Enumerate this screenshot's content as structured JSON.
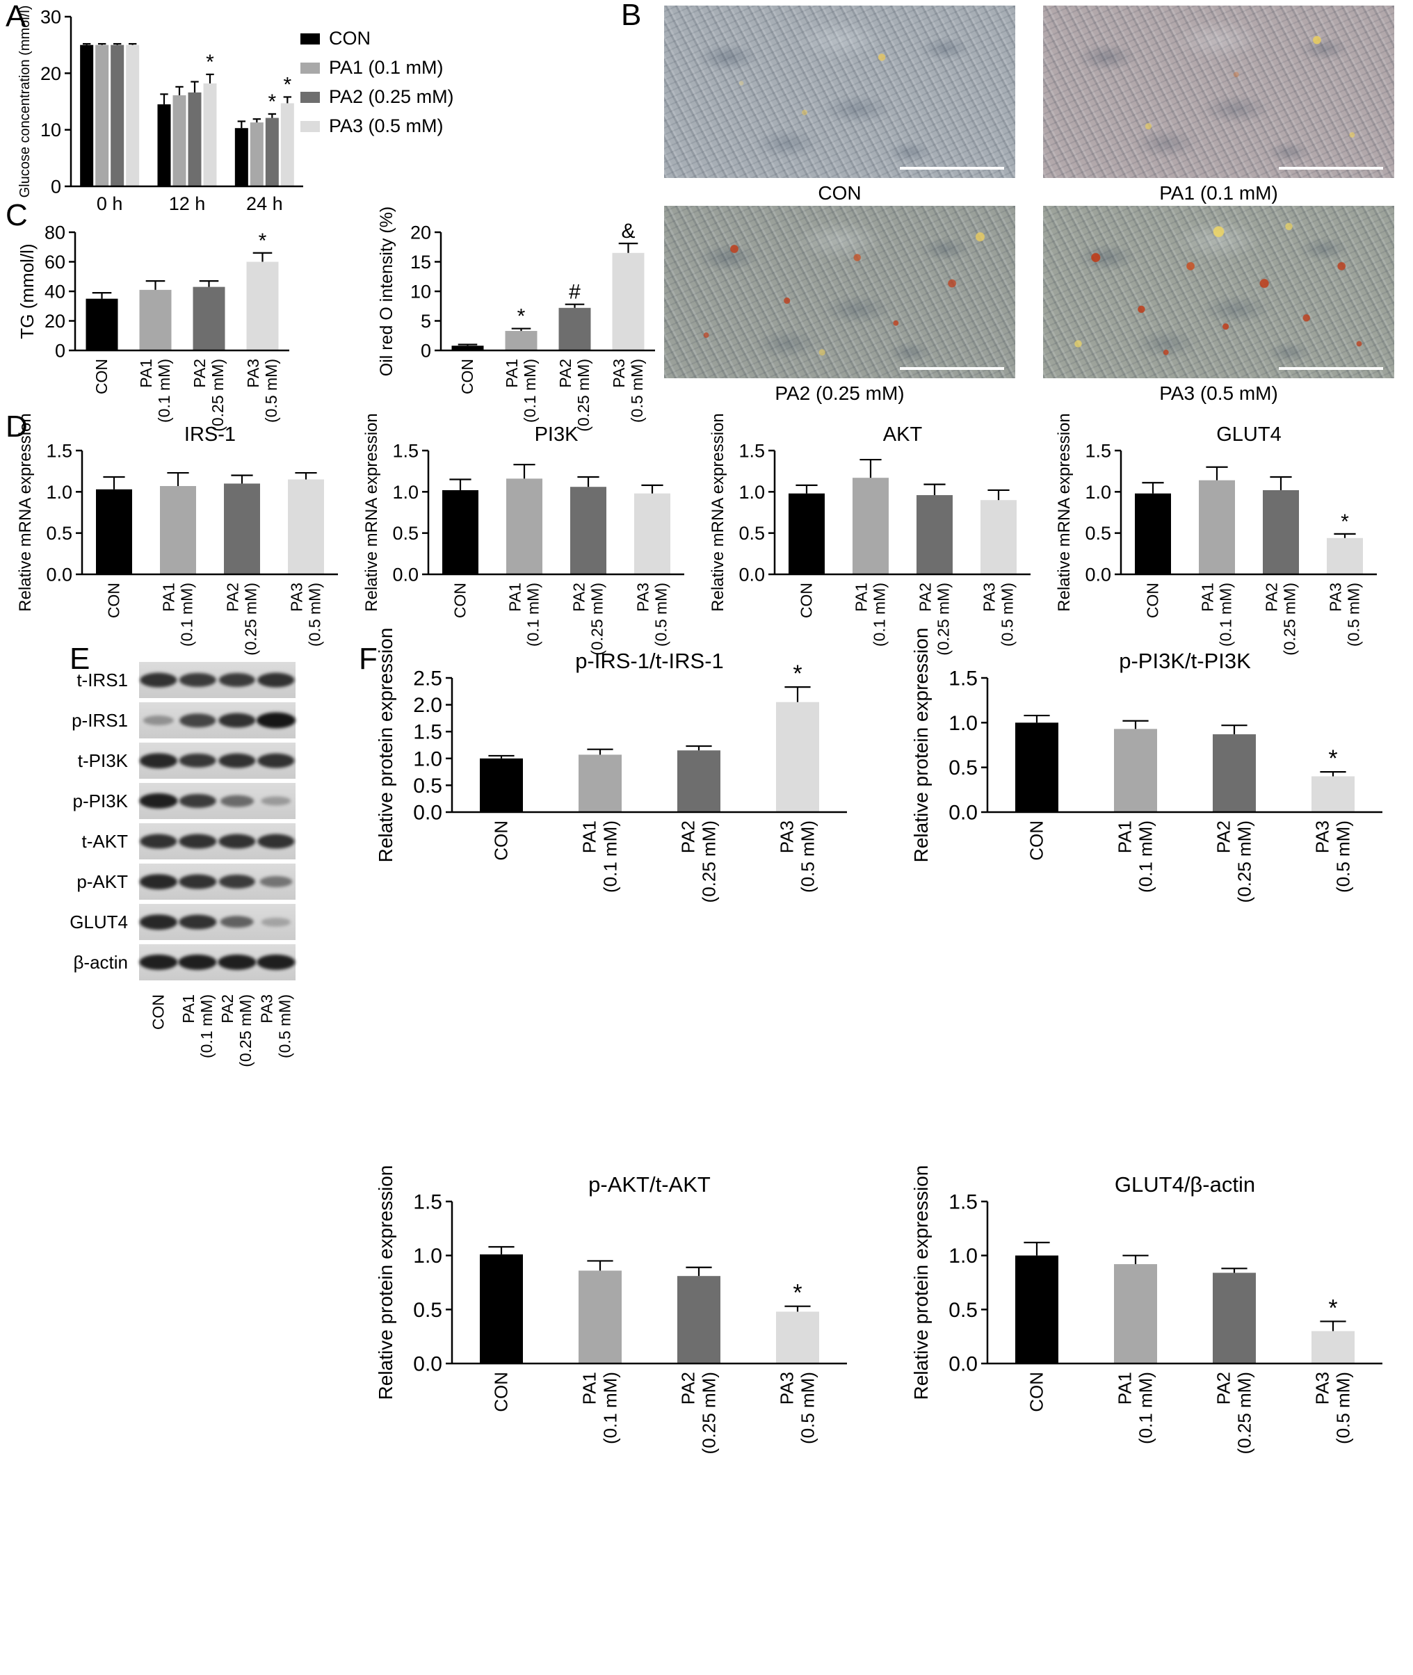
{
  "panels": {
    "A": "A",
    "B": "B",
    "C": "C",
    "D": "D",
    "E": "E",
    "F": "F"
  },
  "colors": {
    "con": "#000000",
    "pa1": "#a8a8a8",
    "pa2": "#6e6e6e",
    "pa3": "#dcdcdc"
  },
  "legend": {
    "items": [
      {
        "label": "CON",
        "color": "#000000"
      },
      {
        "label": "PA1 (0.1 mM)",
        "color": "#a8a8a8"
      },
      {
        "label": "PA2 (0.25 mM)",
        "color": "#6e6e6e"
      },
      {
        "label": "PA3 (0.5 mM)",
        "color": "#dcdcdc"
      }
    ]
  },
  "micrographs": [
    {
      "label": "CON"
    },
    {
      "label": "PA1 (0.1 mM)"
    },
    {
      "label": "PA2 (0.25 mM)"
    },
    {
      "label": "PA3 (0.5 mM)"
    }
  ],
  "western_blot": {
    "lane_labels": [
      [
        "CON"
      ],
      [
        "PA1",
        "(0.1 mM)"
      ],
      [
        "PA2",
        "(0.25 mM)"
      ],
      [
        "PA3",
        "(0.5 mM)"
      ]
    ],
    "rows": [
      {
        "label": "t-IRS1",
        "bands": [
          0.85,
          0.8,
          0.8,
          0.85
        ]
      },
      {
        "label": "p-IRS1",
        "bands": [
          0.35,
          0.75,
          0.85,
          1.0
        ]
      },
      {
        "label": "t-PI3K",
        "bands": [
          0.9,
          0.82,
          0.85,
          0.85
        ]
      },
      {
        "label": "p-PI3K",
        "bands": [
          0.95,
          0.8,
          0.55,
          0.3
        ]
      },
      {
        "label": "t-AKT",
        "bands": [
          0.85,
          0.85,
          0.85,
          0.85
        ]
      },
      {
        "label": "p-AKT",
        "bands": [
          0.9,
          0.85,
          0.8,
          0.5
        ]
      },
      {
        "label": "GLUT4",
        "bands": [
          0.9,
          0.85,
          0.6,
          0.25
        ]
      },
      {
        "label": "β-actin",
        "bands": [
          0.95,
          0.95,
          0.95,
          0.95
        ]
      }
    ]
  },
  "chart_data": [
    {
      "id": "glucose",
      "type": "bar",
      "title": "",
      "ylabel": "Glucose concentration (mmol/l)",
      "ylim": [
        0,
        30
      ],
      "yticks": [
        0,
        10,
        20,
        30
      ],
      "ytick_labels": [
        "0",
        "10",
        "20",
        "30"
      ],
      "categories": [
        "0 h",
        "12 h",
        "24 h"
      ],
      "legend_position": "right",
      "grid": false,
      "series": [
        {
          "name": "CON",
          "color": "#000000",
          "values": [
            25,
            14.5,
            10.3
          ],
          "errors": [
            0.2,
            1.8,
            1.2
          ]
        },
        {
          "name": "PA1 (0.1 mM)",
          "color": "#a8a8a8",
          "values": [
            25,
            16.1,
            11.3
          ],
          "errors": [
            0.2,
            1.5,
            0.6
          ]
        },
        {
          "name": "PA2 (0.25 mM)",
          "color": "#6e6e6e",
          "values": [
            25,
            16.6,
            12.1
          ],
          "errors": [
            0.2,
            1.9,
            0.7
          ]
        },
        {
          "name": "PA3 (0.5 mM)",
          "color": "#dcdcdc",
          "values": [
            25,
            18.2,
            14.7
          ],
          "errors": [
            0.2,
            1.6,
            1.1
          ]
        }
      ],
      "annotations": [
        {
          "series": 3,
          "category": 1,
          "symbol": "*"
        },
        {
          "series": 2,
          "category": 2,
          "symbol": "*"
        },
        {
          "series": 3,
          "category": 2,
          "symbol": "*"
        }
      ]
    },
    {
      "id": "tg",
      "type": "bar",
      "ylabel": "TG (mmol/l)",
      "ylim": [
        0,
        80
      ],
      "yticks": [
        0,
        20,
        40,
        60,
        80
      ],
      "ytick_labels": [
        "0",
        "20",
        "40",
        "60",
        "80"
      ],
      "categories": [
        [
          "CON"
        ],
        [
          "PA1",
          "(0.1 mM)"
        ],
        [
          "PA2",
          "(0.25 mM)"
        ],
        [
          "PA3",
          "(0.5 mM)"
        ]
      ],
      "values": [
        35,
        41,
        43,
        60
      ],
      "errors": [
        4,
        6,
        4,
        6
      ],
      "colors": [
        "#000000",
        "#a8a8a8",
        "#6e6e6e",
        "#dcdcdc"
      ],
      "annotations": [
        {
          "bar": 3,
          "symbol": "*"
        }
      ]
    },
    {
      "id": "oil",
      "type": "bar",
      "ylabel": "Oil red O intensity (%)",
      "ylim": [
        0,
        20
      ],
      "yticks": [
        0,
        5,
        10,
        15,
        20
      ],
      "ytick_labels": [
        "0",
        "5",
        "10",
        "15",
        "20"
      ],
      "categories": [
        [
          "CON"
        ],
        [
          "PA1",
          "(0.1 mM)"
        ],
        [
          "PA2",
          "(0.25 mM)"
        ],
        [
          "PA3",
          "(0.5 mM)"
        ]
      ],
      "values": [
        0.8,
        3.3,
        7.2,
        16.5
      ],
      "errors": [
        0.2,
        0.4,
        0.6,
        1.6
      ],
      "colors": [
        "#000000",
        "#a8a8a8",
        "#6e6e6e",
        "#dcdcdc"
      ],
      "annotations": [
        {
          "bar": 1,
          "symbol": "*"
        },
        {
          "bar": 2,
          "symbol": "#"
        },
        {
          "bar": 3,
          "symbol": "&"
        }
      ]
    },
    {
      "id": "irs1",
      "type": "bar",
      "title": "IRS-1",
      "ylabel": "Relative mRNA expression",
      "ylim": [
        0,
        1.5
      ],
      "yticks": [
        0,
        0.5,
        1,
        1.5
      ],
      "ytick_labels": [
        "0.0",
        "0.5",
        "1.0",
        "1.5"
      ],
      "categories": [
        [
          "CON"
        ],
        [
          "PA1",
          "(0.1 mM)"
        ],
        [
          "PA2",
          "(0.25 mM)"
        ],
        [
          "PA3",
          "(0.5 mM)"
        ]
      ],
      "values": [
        1.03,
        1.07,
        1.1,
        1.15
      ],
      "errors": [
        0.15,
        0.16,
        0.1,
        0.08
      ],
      "colors": [
        "#000000",
        "#a8a8a8",
        "#6e6e6e",
        "#dcdcdc"
      ],
      "annotations": []
    },
    {
      "id": "pi3k",
      "type": "bar",
      "title": "PI3K",
      "ylabel": "Relative mRNA expression",
      "ylim": [
        0,
        1.5
      ],
      "yticks": [
        0,
        0.5,
        1,
        1.5
      ],
      "ytick_labels": [
        "0.0",
        "0.5",
        "1.0",
        "1.5"
      ],
      "categories": [
        [
          "CON"
        ],
        [
          "PA1",
          "(0.1 mM)"
        ],
        [
          "PA2",
          "(0.25 mM)"
        ],
        [
          "PA3",
          "(0.5 mM)"
        ]
      ],
      "values": [
        1.02,
        1.16,
        1.06,
        0.98
      ],
      "errors": [
        0.13,
        0.17,
        0.12,
        0.1
      ],
      "colors": [
        "#000000",
        "#a8a8a8",
        "#6e6e6e",
        "#dcdcdc"
      ],
      "annotations": []
    },
    {
      "id": "akt",
      "type": "bar",
      "title": "AKT",
      "ylabel": "Relative mRNA expression",
      "ylim": [
        0,
        1.5
      ],
      "yticks": [
        0,
        0.5,
        1,
        1.5
      ],
      "ytick_labels": [
        "0.0",
        "0.5",
        "1.0",
        "1.5"
      ],
      "categories": [
        [
          "CON"
        ],
        [
          "PA1",
          "(0.1 mM)"
        ],
        [
          "PA2",
          "(0.25 mM)"
        ],
        [
          "PA3",
          "(0.5 mM)"
        ]
      ],
      "values": [
        0.98,
        1.17,
        0.96,
        0.9
      ],
      "errors": [
        0.1,
        0.22,
        0.13,
        0.12
      ],
      "colors": [
        "#000000",
        "#a8a8a8",
        "#6e6e6e",
        "#dcdcdc"
      ],
      "annotations": []
    },
    {
      "id": "glut4",
      "type": "bar",
      "title": "GLUT4",
      "ylabel": "Relative mRNA expression",
      "ylim": [
        0,
        1.5
      ],
      "yticks": [
        0,
        0.5,
        1,
        1.5
      ],
      "ytick_labels": [
        "0.0",
        "0.5",
        "1.0",
        "1.5"
      ],
      "categories": [
        [
          "CON"
        ],
        [
          "PA1",
          "(0.1 mM)"
        ],
        [
          "PA2",
          "(0.25 mM)"
        ],
        [
          "PA3",
          "(0.5 mM)"
        ]
      ],
      "values": [
        0.98,
        1.14,
        1.02,
        0.44
      ],
      "errors": [
        0.13,
        0.16,
        0.16,
        0.05
      ],
      "colors": [
        "#000000",
        "#a8a8a8",
        "#6e6e6e",
        "#dcdcdc"
      ],
      "annotations": [
        {
          "bar": 3,
          "symbol": "*"
        }
      ]
    },
    {
      "id": "p_irs1",
      "type": "bar",
      "title": "p-IRS-1/t-IRS-1",
      "ylabel": "Relative protein expression",
      "ylim": [
        0,
        2.5
      ],
      "yticks": [
        0,
        0.5,
        1,
        1.5,
        2,
        2.5
      ],
      "ytick_labels": [
        "0.0",
        "0.5",
        "1.0",
        "1.5",
        "2.0",
        "2.5"
      ],
      "categories": [
        [
          "CON"
        ],
        [
          "PA1",
          "(0.1 mM)"
        ],
        [
          "PA2",
          "(0.25 mM)"
        ],
        [
          "PA3",
          "(0.5 mM)"
        ]
      ],
      "values": [
        1.0,
        1.07,
        1.15,
        2.05
      ],
      "errors": [
        0.05,
        0.1,
        0.08,
        0.28
      ],
      "colors": [
        "#000000",
        "#a8a8a8",
        "#6e6e6e",
        "#dcdcdc"
      ],
      "annotations": [
        {
          "bar": 3,
          "symbol": "*"
        }
      ]
    },
    {
      "id": "p_pi3k",
      "type": "bar",
      "title": "p-PI3K/t-PI3K",
      "ylabel": "Relative protein expression",
      "ylim": [
        0,
        1.5
      ],
      "yticks": [
        0,
        0.5,
        1,
        1.5
      ],
      "ytick_labels": [
        "0.0",
        "0.5",
        "1.0",
        "1.5"
      ],
      "categories": [
        [
          "CON"
        ],
        [
          "PA1",
          "(0.1 mM)"
        ],
        [
          "PA2",
          "(0.25 mM)"
        ],
        [
          "PA3",
          "(0.5 mM)"
        ]
      ],
      "values": [
        1.0,
        0.93,
        0.87,
        0.4
      ],
      "errors": [
        0.08,
        0.09,
        0.1,
        0.05
      ],
      "colors": [
        "#000000",
        "#a8a8a8",
        "#6e6e6e",
        "#dcdcdc"
      ],
      "annotations": [
        {
          "bar": 3,
          "symbol": "*"
        }
      ]
    },
    {
      "id": "p_akt",
      "type": "bar",
      "title": "p-AKT/t-AKT",
      "ylabel": "Relative protein expression",
      "ylim": [
        0,
        1.5
      ],
      "yticks": [
        0,
        0.5,
        1,
        1.5
      ],
      "ytick_labels": [
        "0.0",
        "0.5",
        "1.0",
        "1.5"
      ],
      "categories": [
        [
          "CON"
        ],
        [
          "PA1",
          "(0.1 mM)"
        ],
        [
          "PA2",
          "(0.25 mM)"
        ],
        [
          "PA3",
          "(0.5 mM)"
        ]
      ],
      "values": [
        1.01,
        0.86,
        0.81,
        0.48
      ],
      "errors": [
        0.07,
        0.09,
        0.08,
        0.05
      ],
      "colors": [
        "#000000",
        "#a8a8a8",
        "#6e6e6e",
        "#dcdcdc"
      ],
      "annotations": [
        {
          "bar": 3,
          "symbol": "*"
        }
      ]
    },
    {
      "id": "glut4_actin",
      "type": "bar",
      "title": "GLUT4/β-actin",
      "ylabel": "Relative protein expression",
      "ylim": [
        0,
        1.5
      ],
      "yticks": [
        0,
        0.5,
        1,
        1.5
      ],
      "ytick_labels": [
        "0.0",
        "0.5",
        "1.0",
        "1.5"
      ],
      "categories": [
        [
          "CON"
        ],
        [
          "PA1",
          "(0.1 mM)"
        ],
        [
          "PA2",
          "(0.25 mM)"
        ],
        [
          "PA3",
          "(0.5 mM)"
        ]
      ],
      "values": [
        1.0,
        0.92,
        0.84,
        0.3
      ],
      "errors": [
        0.12,
        0.08,
        0.04,
        0.09
      ],
      "colors": [
        "#000000",
        "#a8a8a8",
        "#6e6e6e",
        "#dcdcdc"
      ],
      "annotations": [
        {
          "bar": 3,
          "symbol": "*"
        }
      ]
    }
  ]
}
